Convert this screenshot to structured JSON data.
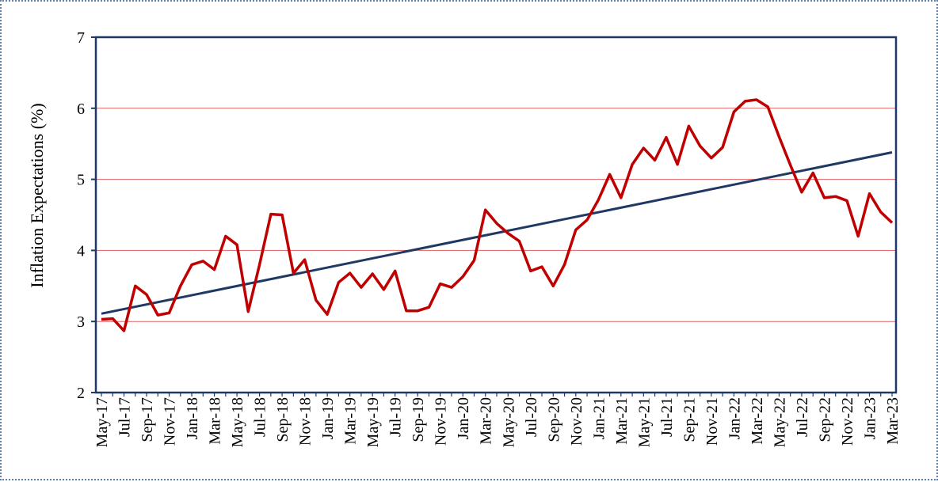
{
  "chart_data": {
    "type": "line",
    "title": "",
    "xlabel": "",
    "ylabel": "Inflation Expectations (%)",
    "ylim": [
      2,
      7
    ],
    "yticks": [
      2,
      3,
      4,
      5,
      6,
      7
    ],
    "grid": "horizontal",
    "x_tick_labels": [
      "May-17",
      "Jul-17",
      "Sep-17",
      "Nov-17",
      "Jan-18",
      "Mar-18",
      "May-18",
      "Jul-18",
      "Sep-18",
      "Nov-18",
      "Jan-19",
      "Mar-19",
      "May-19",
      "Jul-19",
      "Sep-19",
      "Nov-19",
      "Jan-20",
      "Mar-20",
      "May-20",
      "Jul-20",
      "Sep-20",
      "Nov-20",
      "Jan-21",
      "Mar-21",
      "May-21",
      "Jul-21",
      "Sep-21",
      "Nov-21",
      "Jan-22",
      "Mar-22",
      "May-22",
      "Jul-22",
      "Sep-22",
      "Nov-22",
      "Jan-23",
      "Mar-23"
    ],
    "x": [
      "May-17",
      "Jun-17",
      "Jul-17",
      "Aug-17",
      "Sep-17",
      "Oct-17",
      "Nov-17",
      "Dec-17",
      "Jan-18",
      "Feb-18",
      "Mar-18",
      "Apr-18",
      "May-18",
      "Jun-18",
      "Jul-18",
      "Aug-18",
      "Sep-18",
      "Oct-18",
      "Nov-18",
      "Dec-18",
      "Jan-19",
      "Feb-19",
      "Mar-19",
      "Apr-19",
      "May-19",
      "Jun-19",
      "Jul-19",
      "Aug-19",
      "Sep-19",
      "Oct-19",
      "Nov-19",
      "Dec-19",
      "Jan-20",
      "Feb-20",
      "Mar-20",
      "Apr-20",
      "May-20",
      "Jun-20",
      "Jul-20",
      "Aug-20",
      "Sep-20",
      "Oct-20",
      "Nov-20",
      "Dec-20",
      "Jan-21",
      "Feb-21",
      "Mar-21",
      "Apr-21",
      "May-21",
      "Jun-21",
      "Jul-21",
      "Aug-21",
      "Sep-21",
      "Oct-21",
      "Nov-21",
      "Dec-21",
      "Jan-22",
      "Feb-22",
      "Mar-22",
      "Apr-22",
      "May-22",
      "Jun-22",
      "Jul-22",
      "Aug-22",
      "Sep-22",
      "Oct-22",
      "Nov-22",
      "Dec-22",
      "Jan-23",
      "Feb-23",
      "Mar-23"
    ],
    "series": [
      {
        "values": [
          3.03,
          3.04,
          2.87,
          3.5,
          3.38,
          3.09,
          3.12,
          3.5,
          3.8,
          3.85,
          3.73,
          4.2,
          4.08,
          3.14,
          3.8,
          4.51,
          4.5,
          3.68,
          3.87,
          3.3,
          3.1,
          3.55,
          3.68,
          3.48,
          3.67,
          3.45,
          3.71,
          3.15,
          3.15,
          3.2,
          3.53,
          3.48,
          3.63,
          3.86,
          4.57,
          4.38,
          4.24,
          4.13,
          3.71,
          3.77,
          3.5,
          3.8,
          4.29,
          4.43,
          4.71,
          5.07,
          4.74,
          5.21,
          5.44,
          5.27,
          5.59,
          5.21,
          5.75,
          5.47,
          5.3,
          5.45,
          5.95,
          6.1,
          6.12,
          6.02,
          5.6,
          5.2,
          4.82,
          5.09,
          4.74,
          4.76,
          4.7,
          4.2,
          4.8,
          4.54,
          4.39
        ],
        "color": "#c00000"
      },
      {
        "values_at_ends": [
          3.11,
          5.38
        ],
        "color": "#1f3864",
        "kind": "linear trend"
      }
    ],
    "colors": {
      "grid": "#e06060",
      "axis": "#1f3864",
      "frame": "#5b7fb3"
    }
  }
}
